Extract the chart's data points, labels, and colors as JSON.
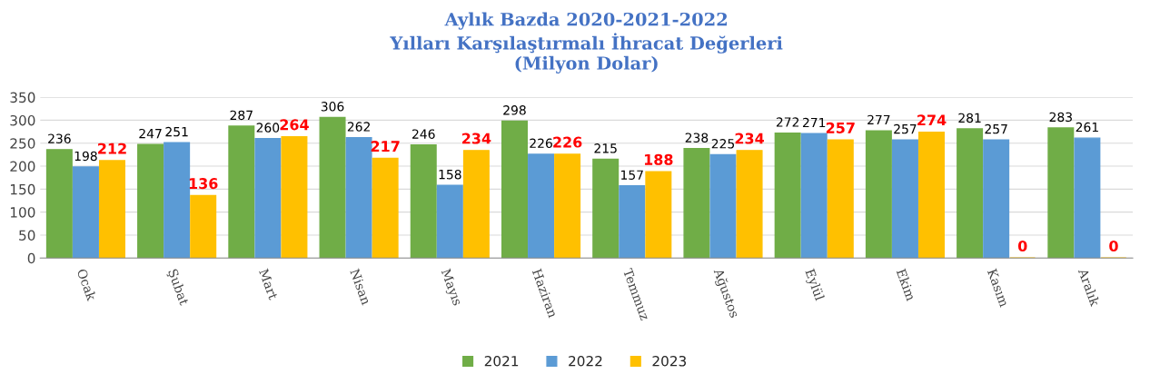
{
  "chart_data": {
    "type": "bar",
    "title": "Aylık Bazda 2020-2021-2022\nYılları Karşılaştırmalı İhracat Değerleri\n(Milyon Dolar)",
    "categories": [
      "Ocak",
      "Şubat",
      "Mart",
      "Nisan",
      "Mayıs",
      "Haziran",
      "Temmuz",
      "Ağustos",
      "Eylül",
      "Ekim",
      "Kasım",
      "Aralık"
    ],
    "series": [
      {
        "name": "2021",
        "color": "#70ad47",
        "values": [
          236,
          247,
          287,
          306,
          246,
          298,
          215,
          238,
          272,
          277,
          281,
          283
        ]
      },
      {
        "name": "2022",
        "color": "#5b9bd5",
        "values": [
          198,
          251,
          260,
          262,
          158,
          226,
          157,
          225,
          271,
          257,
          257,
          261
        ]
      },
      {
        "name": "2023",
        "color": "#ffc000",
        "values": [
          212,
          136,
          264,
          217,
          234,
          226,
          188,
          234,
          257,
          274,
          0,
          0
        ]
      }
    ],
    "ylim": [
      0,
      350
    ],
    "yticks": [
      0,
      50,
      100,
      150,
      200,
      250,
      300,
      350
    ],
    "grid": "y",
    "legend": "bottom",
    "data_labels": true
  }
}
